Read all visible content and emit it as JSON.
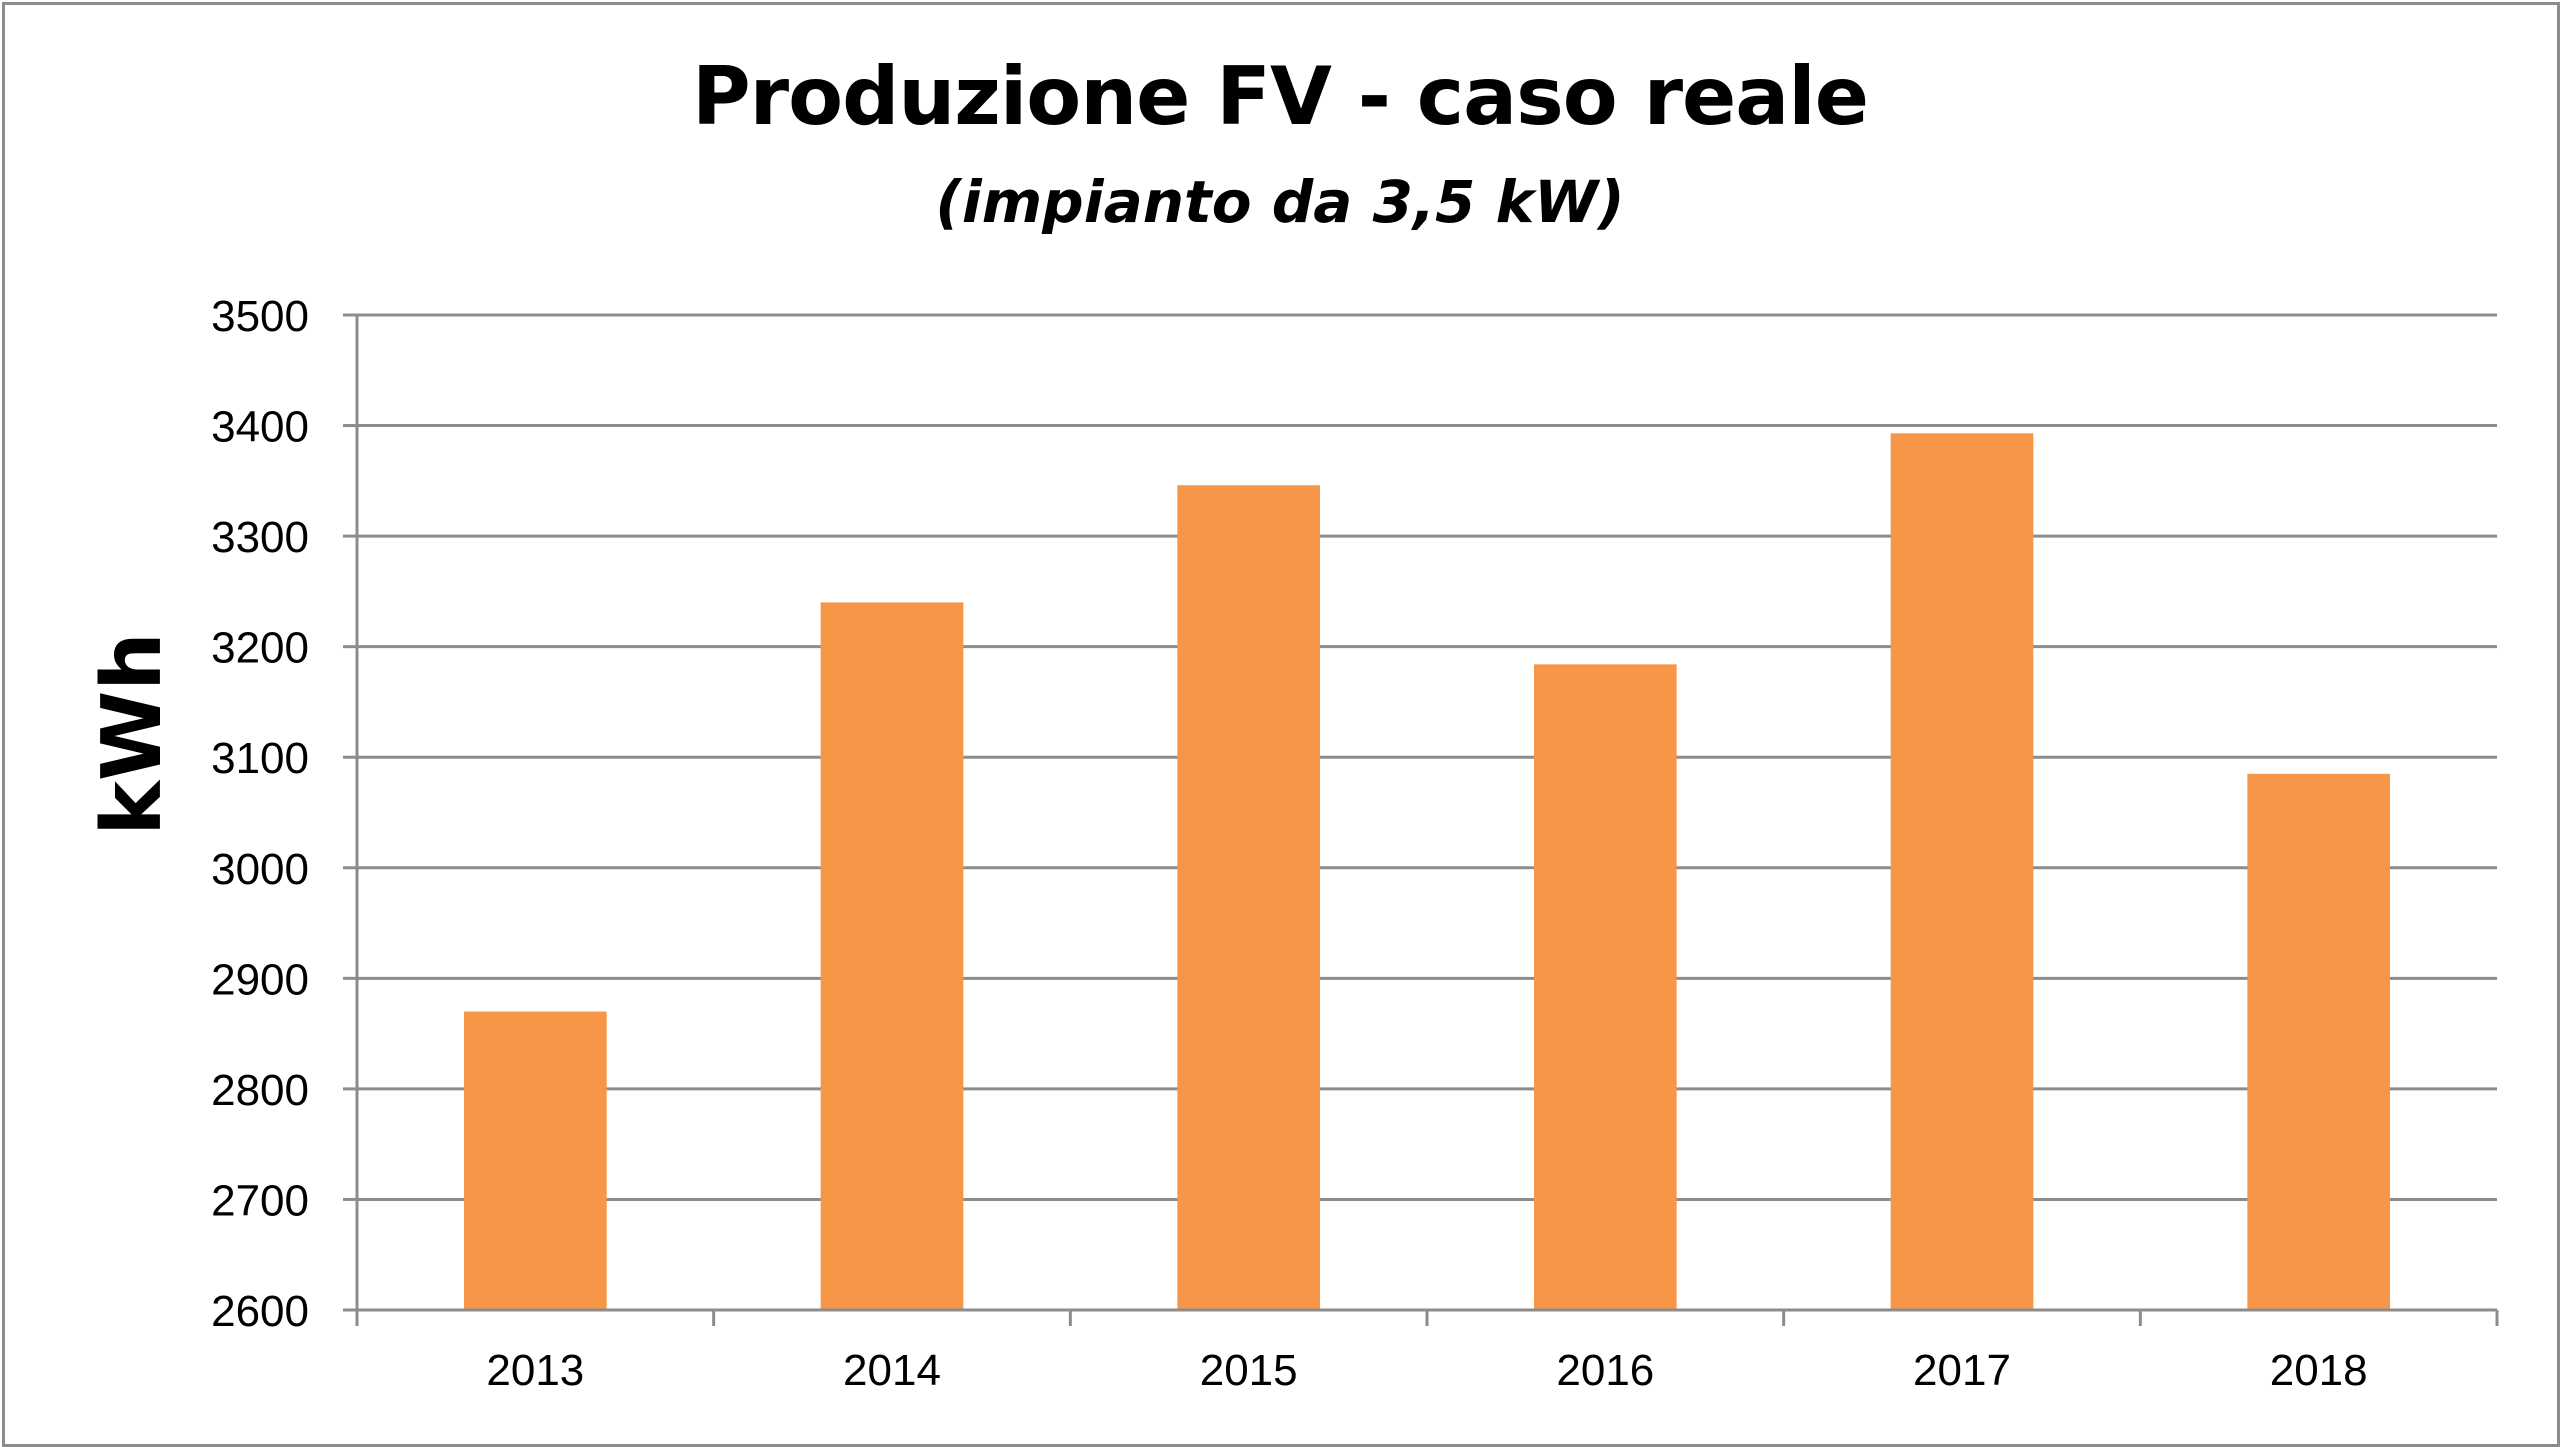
{
  "chart_data": {
    "type": "bar",
    "title": "Produzione FV - caso reale",
    "subtitle": "(impianto da 3,5 kW)",
    "xlabel": "",
    "ylabel": "kWh",
    "categories": [
      "2013",
      "2014",
      "2015",
      "2016",
      "2017",
      "2018"
    ],
    "values": [
      2870,
      3240,
      3346,
      3184,
      3393,
      3085
    ],
    "ylim": [
      2600,
      3500
    ],
    "yticks": [
      2600,
      2700,
      2800,
      2900,
      3000,
      3100,
      3200,
      3300,
      3400,
      3500
    ],
    "grid": true,
    "legend": "none",
    "colors": {
      "bar": "#f79646",
      "grid": "#8c8c8c",
      "axis": "#8c8c8c",
      "border": "#8c8c8c"
    }
  }
}
